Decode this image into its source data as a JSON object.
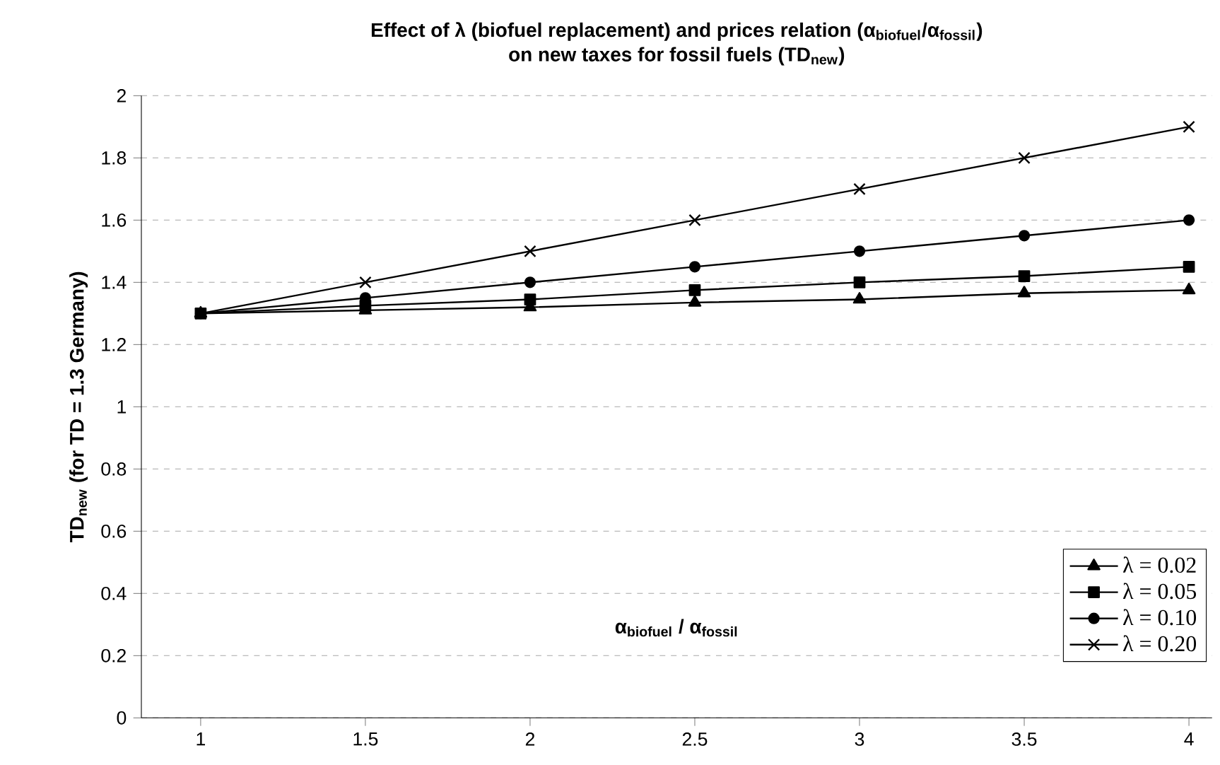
{
  "chart_data": {
    "type": "line",
    "title": "Effect of λ (biofuel replacement) and prices relation (α$_{biofuel}$/α$_{fossil}$)",
    "subtitle": "on new taxes for fossil fuels (TD$_{new}$)",
    "xlabel": "α$_{biofuel}$ /  α$_{fossil}$",
    "ylabel": "TD$_{new}$ (for TD = 1.3 Germany)",
    "x": [
      1,
      1.5,
      2,
      2.5,
      3,
      3.5,
      4
    ],
    "series": [
      {
        "name": "λ = 0.02",
        "color": "#000000",
        "marker": "triangle",
        "values": [
          1.3,
          1.31,
          1.32,
          1.335,
          1.345,
          1.365,
          1.375
        ]
      },
      {
        "name": "λ = 0.05",
        "color": "#000000",
        "marker": "square",
        "values": [
          1.3,
          1.325,
          1.345,
          1.375,
          1.4,
          1.42,
          1.45
        ]
      },
      {
        "name": "λ = 0.10",
        "color": "#000000",
        "marker": "circle",
        "values": [
          1.3,
          1.35,
          1.4,
          1.45,
          1.5,
          1.55,
          1.6
        ]
      },
      {
        "name": "λ = 0.20",
        "color": "#000000",
        "marker": "cross",
        "values": [
          1.3,
          1.4,
          1.5,
          1.6,
          1.7,
          1.8,
          1.9
        ]
      }
    ],
    "xlim": [
      0.82,
      4.07
    ],
    "xticks": [
      1,
      1.5,
      2,
      2.5,
      3,
      3.5,
      4
    ],
    "ylim": [
      0,
      2
    ],
    "yticks": [
      0,
      0.2,
      0.4,
      0.6,
      0.8,
      1,
      1.2,
      1.4,
      1.6,
      1.8,
      2
    ],
    "grid": "y",
    "legend": "bottom right",
    "line_style": "solid"
  }
}
